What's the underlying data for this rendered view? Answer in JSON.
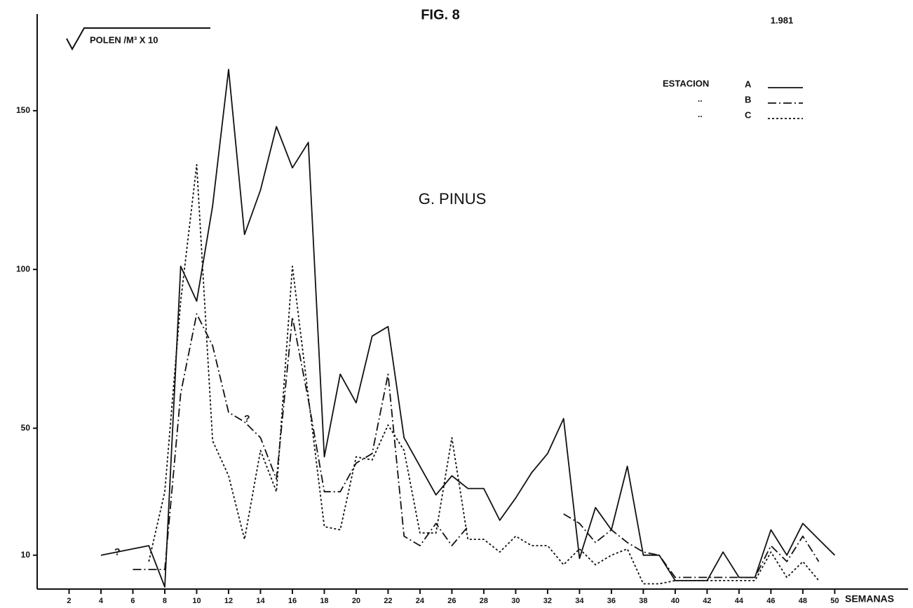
{
  "chart_data": {
    "type": "line",
    "title": "FIG. 8",
    "year": "1.981",
    "subtitle": "G. PINUS",
    "ylabel": "POLEN /M³ X 10",
    "xlabel": "SEMANAS",
    "legend_title": "ESTACION",
    "legend_ditto": [
      "..",
      ".."
    ],
    "annotations": [
      "?",
      "?"
    ],
    "xlim": [
      0,
      54.6
    ],
    "ylim": [
      0,
      180
    ],
    "xticks": [
      2,
      4,
      6,
      8,
      10,
      12,
      14,
      16,
      18,
      20,
      22,
      24,
      26,
      28,
      30,
      32,
      34,
      36,
      38,
      40,
      42,
      44,
      46,
      48,
      50
    ],
    "yticks": [
      10,
      50,
      100,
      150
    ],
    "series": [
      {
        "name": "A",
        "color": "#111111",
        "dash": "solid",
        "x": [
          4,
          7,
          8,
          9,
          10,
          11,
          12,
          13,
          14,
          15,
          16,
          17,
          18,
          19,
          20,
          21,
          22,
          23,
          24,
          25,
          26,
          27,
          28,
          29,
          30,
          31,
          32,
          33,
          34,
          35,
          36,
          37,
          38,
          39,
          40,
          41,
          42,
          43,
          44,
          45,
          46,
          47,
          48,
          49,
          50
        ],
        "values": [
          10,
          13,
          0,
          101,
          90,
          120,
          163,
          111,
          125,
          145,
          132,
          140,
          41,
          67,
          58,
          79,
          82,
          47,
          38,
          29,
          35,
          31,
          31,
          21,
          28,
          36,
          42,
          53,
          9,
          25,
          18,
          38,
          10,
          10,
          2,
          2,
          2,
          11,
          3,
          3,
          18,
          10,
          20,
          15,
          10
        ]
      },
      {
        "name": "B",
        "color": "#111111",
        "dash": "dashdot",
        "x": [
          6,
          7,
          8,
          9,
          10,
          11,
          12,
          13,
          14,
          15,
          16,
          17,
          18,
          19,
          20,
          21,
          22,
          23,
          24,
          25,
          26,
          27,
          28,
          33,
          34,
          35,
          36,
          37,
          38,
          39,
          40,
          41,
          42,
          43,
          44,
          45,
          46,
          47,
          48,
          49
        ],
        "values": [
          5.5,
          5.5,
          5.5,
          61,
          86,
          76,
          55,
          52,
          47,
          34,
          85,
          59,
          30,
          30,
          39,
          42,
          67,
          16,
          13,
          20,
          13,
          19,
          null,
          23,
          20,
          14,
          18,
          14,
          11,
          10,
          3,
          3,
          3,
          3,
          3,
          3,
          13,
          8,
          16,
          8
        ]
      },
      {
        "name": "C",
        "color": "#111111",
        "dash": "dotted",
        "x": [
          7,
          8,
          9,
          10,
          11,
          12,
          13,
          14,
          15,
          16,
          17,
          18,
          19,
          20,
          21,
          22,
          23,
          24,
          25,
          26,
          27,
          28,
          29,
          30,
          31,
          32,
          33,
          34,
          35,
          36,
          37,
          38,
          39,
          40,
          41,
          42,
          43,
          44,
          45,
          46,
          47,
          48,
          49
        ],
        "values": [
          8,
          30,
          90,
          133,
          46,
          35,
          15,
          43,
          30,
          101,
          60,
          19,
          18,
          41,
          40,
          51,
          43,
          17,
          17,
          47,
          15,
          15,
          11,
          16,
          13,
          13,
          7,
          12,
          7,
          10,
          12,
          1,
          1,
          2,
          2,
          2,
          2,
          2,
          2,
          11,
          3,
          8,
          2
        ]
      }
    ]
  }
}
